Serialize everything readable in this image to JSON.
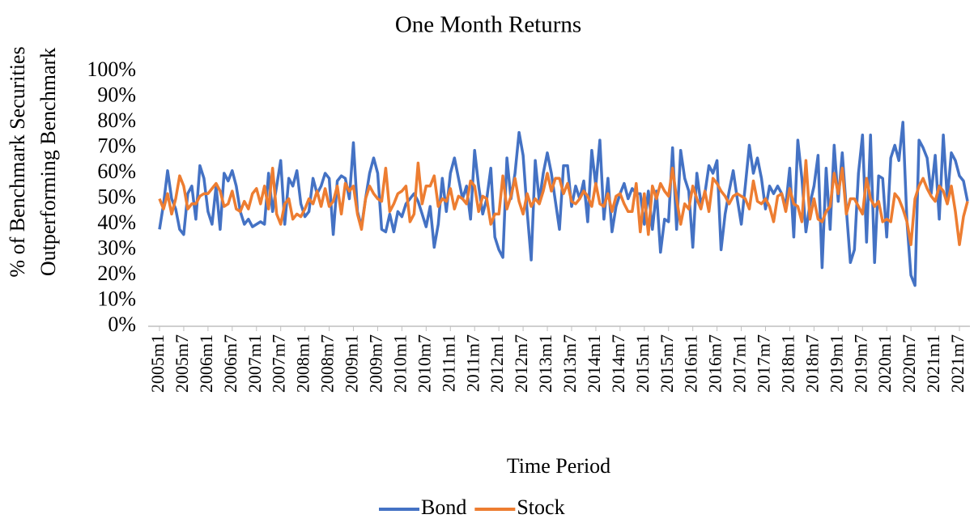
{
  "chart_data": {
    "type": "line",
    "title": "One Month Returns",
    "x_label": "Time Period",
    "y_label": [
      "% of Benchmark Securities",
      "Outperforming Benchmark"
    ],
    "categories": [
      "2005m1",
      null,
      null,
      null,
      null,
      null,
      "2005m7",
      null,
      null,
      null,
      null,
      null,
      "2006m1",
      null,
      null,
      null,
      null,
      null,
      "2006m7",
      null,
      null,
      null,
      null,
      null,
      "2007m1",
      null,
      null,
      null,
      null,
      null,
      "2007m7",
      null,
      null,
      null,
      null,
      null,
      "2008m1",
      null,
      null,
      null,
      null,
      null,
      "2008m7",
      null,
      null,
      null,
      null,
      null,
      "2009m1",
      null,
      null,
      null,
      null,
      null,
      "2009m7",
      null,
      null,
      null,
      null,
      null,
      "2010m1",
      null,
      null,
      null,
      null,
      null,
      "2010m7",
      null,
      null,
      null,
      null,
      null,
      "2011m1",
      null,
      null,
      null,
      null,
      null,
      "2011m7",
      null,
      null,
      null,
      null,
      null,
      "2012m1",
      null,
      null,
      null,
      null,
      null,
      "2012m7",
      null,
      null,
      null,
      null,
      null,
      "2013m1",
      null,
      null,
      null,
      null,
      null,
      "2013m7",
      null,
      null,
      null,
      null,
      null,
      "2014m1",
      null,
      null,
      null,
      null,
      null,
      "2014m7",
      null,
      null,
      null,
      null,
      null,
      "2015m1",
      null,
      null,
      null,
      null,
      null,
      "2015m7",
      null,
      null,
      null,
      null,
      null,
      "2016m1",
      null,
      null,
      null,
      null,
      null,
      "2016m7",
      null,
      null,
      null,
      null,
      null,
      "2017m1",
      null,
      null,
      null,
      null,
      null,
      "2017m7",
      null,
      null,
      null,
      null,
      null,
      "2018m1",
      null,
      null,
      null,
      null,
      null,
      "2018m7",
      null,
      null,
      null,
      null,
      null,
      "2019m1",
      null,
      null,
      null,
      null,
      null,
      "2019m7",
      null,
      null,
      null,
      null,
      null,
      "2020m1",
      null,
      null,
      null,
      null,
      null,
      "2020m7",
      null,
      null,
      null,
      null,
      null,
      "2021m1",
      null,
      null,
      null,
      null,
      null,
      "2021m7",
      null,
      null
    ],
    "series": [
      {
        "name": "Bond",
        "color": "#4472c4",
        "values": [
          38,
          48,
          61,
          50,
          46,
          38,
          36,
          52,
          55,
          42,
          63,
          58,
          45,
          40,
          55,
          38,
          60,
          57,
          61,
          55,
          45,
          40,
          42,
          39,
          40,
          41,
          40,
          60,
          45,
          55,
          65,
          40,
          58,
          55,
          61,
          48,
          43,
          45,
          58,
          52,
          55,
          60,
          58,
          36,
          57,
          59,
          58,
          50,
          72,
          45,
          39,
          50,
          60,
          66,
          60,
          38,
          37,
          44,
          37,
          45,
          43,
          48,
          50,
          52,
          49,
          44,
          39,
          47,
          31,
          40,
          58,
          45,
          60,
          66,
          58,
          50,
          55,
          42,
          69,
          55,
          44,
          50,
          62,
          35,
          30,
          27,
          66,
          50,
          60,
          76,
          67,
          45,
          26,
          65,
          49,
          60,
          68,
          60,
          49,
          38,
          63,
          63,
          47,
          55,
          50,
          57,
          41,
          69,
          55,
          73,
          42,
          58,
          37,
          47,
          52,
          56,
          50,
          54,
          52,
          52,
          40,
          53,
          38,
          53,
          29,
          42,
          41,
          70,
          38,
          69,
          58,
          53,
          31,
          60,
          48,
          52,
          63,
          60,
          65,
          30,
          44,
          53,
          61,
          50,
          40,
          55,
          71,
          60,
          66,
          58,
          46,
          55,
          52,
          55,
          52,
          47,
          62,
          35,
          73,
          58,
          37,
          48,
          55,
          67,
          23,
          62,
          38,
          71,
          49,
          68,
          46,
          25,
          30,
          60,
          75,
          33,
          75,
          25,
          59,
          58,
          35,
          66,
          71,
          65,
          80,
          41,
          20,
          16,
          73,
          70,
          66,
          52,
          67,
          42,
          75,
          50,
          68,
          65,
          59,
          57,
          49
        ]
      },
      {
        "name": "Stock",
        "color": "#ed7d31",
        "values": [
          50,
          46,
          52,
          44,
          50,
          59,
          55,
          46,
          48,
          48,
          51,
          52,
          52,
          54,
          56,
          53,
          47,
          48,
          53,
          46,
          45,
          49,
          46,
          52,
          54,
          48,
          55,
          46,
          62,
          44,
          40,
          48,
          50,
          42,
          44,
          43,
          46,
          50,
          48,
          53,
          47,
          54,
          47,
          49,
          55,
          44,
          56,
          53,
          55,
          44,
          38,
          50,
          55,
          52,
          50,
          49,
          62,
          45,
          48,
          52,
          53,
          55,
          41,
          44,
          64,
          48,
          55,
          55,
          59,
          47,
          50,
          49,
          54,
          46,
          51,
          50,
          48,
          57,
          55,
          45,
          51,
          50,
          40,
          44,
          44,
          59,
          46,
          51,
          58,
          49,
          44,
          52,
          47,
          50,
          48,
          53,
          60,
          53,
          58,
          58,
          52,
          56,
          49,
          48,
          50,
          53,
          51,
          47,
          56,
          48,
          47,
          52,
          45,
          51,
          52,
          48,
          45,
          45,
          56,
          37,
          52,
          36,
          55,
          50,
          56,
          53,
          51,
          62,
          50,
          40,
          48,
          46,
          55,
          50,
          46,
          53,
          45,
          58,
          56,
          53,
          51,
          48,
          51,
          52,
          51,
          50,
          46,
          57,
          49,
          48,
          50,
          47,
          41,
          51,
          52,
          45,
          54,
          48,
          47,
          41,
          65,
          42,
          50,
          42,
          41,
          45,
          47,
          60,
          52,
          62,
          44,
          50,
          50,
          47,
          44,
          58,
          50,
          47,
          49,
          41,
          42,
          41,
          52,
          50,
          46,
          41,
          32,
          50,
          55,
          58,
          54,
          51,
          49,
          55,
          53,
          48,
          55,
          45,
          32,
          43,
          49
        ]
      }
    ],
    "ylim": [
      0,
      100
    ],
    "yticks": [
      {
        "value": 0,
        "label": "0%"
      },
      {
        "value": 10,
        "label": "10%"
      },
      {
        "value": 20,
        "label": "20%"
      },
      {
        "value": 30,
        "label": "30%"
      },
      {
        "value": 40,
        "label": "40%"
      },
      {
        "value": 50,
        "label": "50%"
      },
      {
        "value": 60,
        "label": "60%"
      },
      {
        "value": 70,
        "label": "70%"
      },
      {
        "value": 80,
        "label": "80%"
      },
      {
        "value": 90,
        "label": "90%"
      },
      {
        "value": 100,
        "label": "100%"
      }
    ],
    "grid": false,
    "legend": "bottom"
  }
}
